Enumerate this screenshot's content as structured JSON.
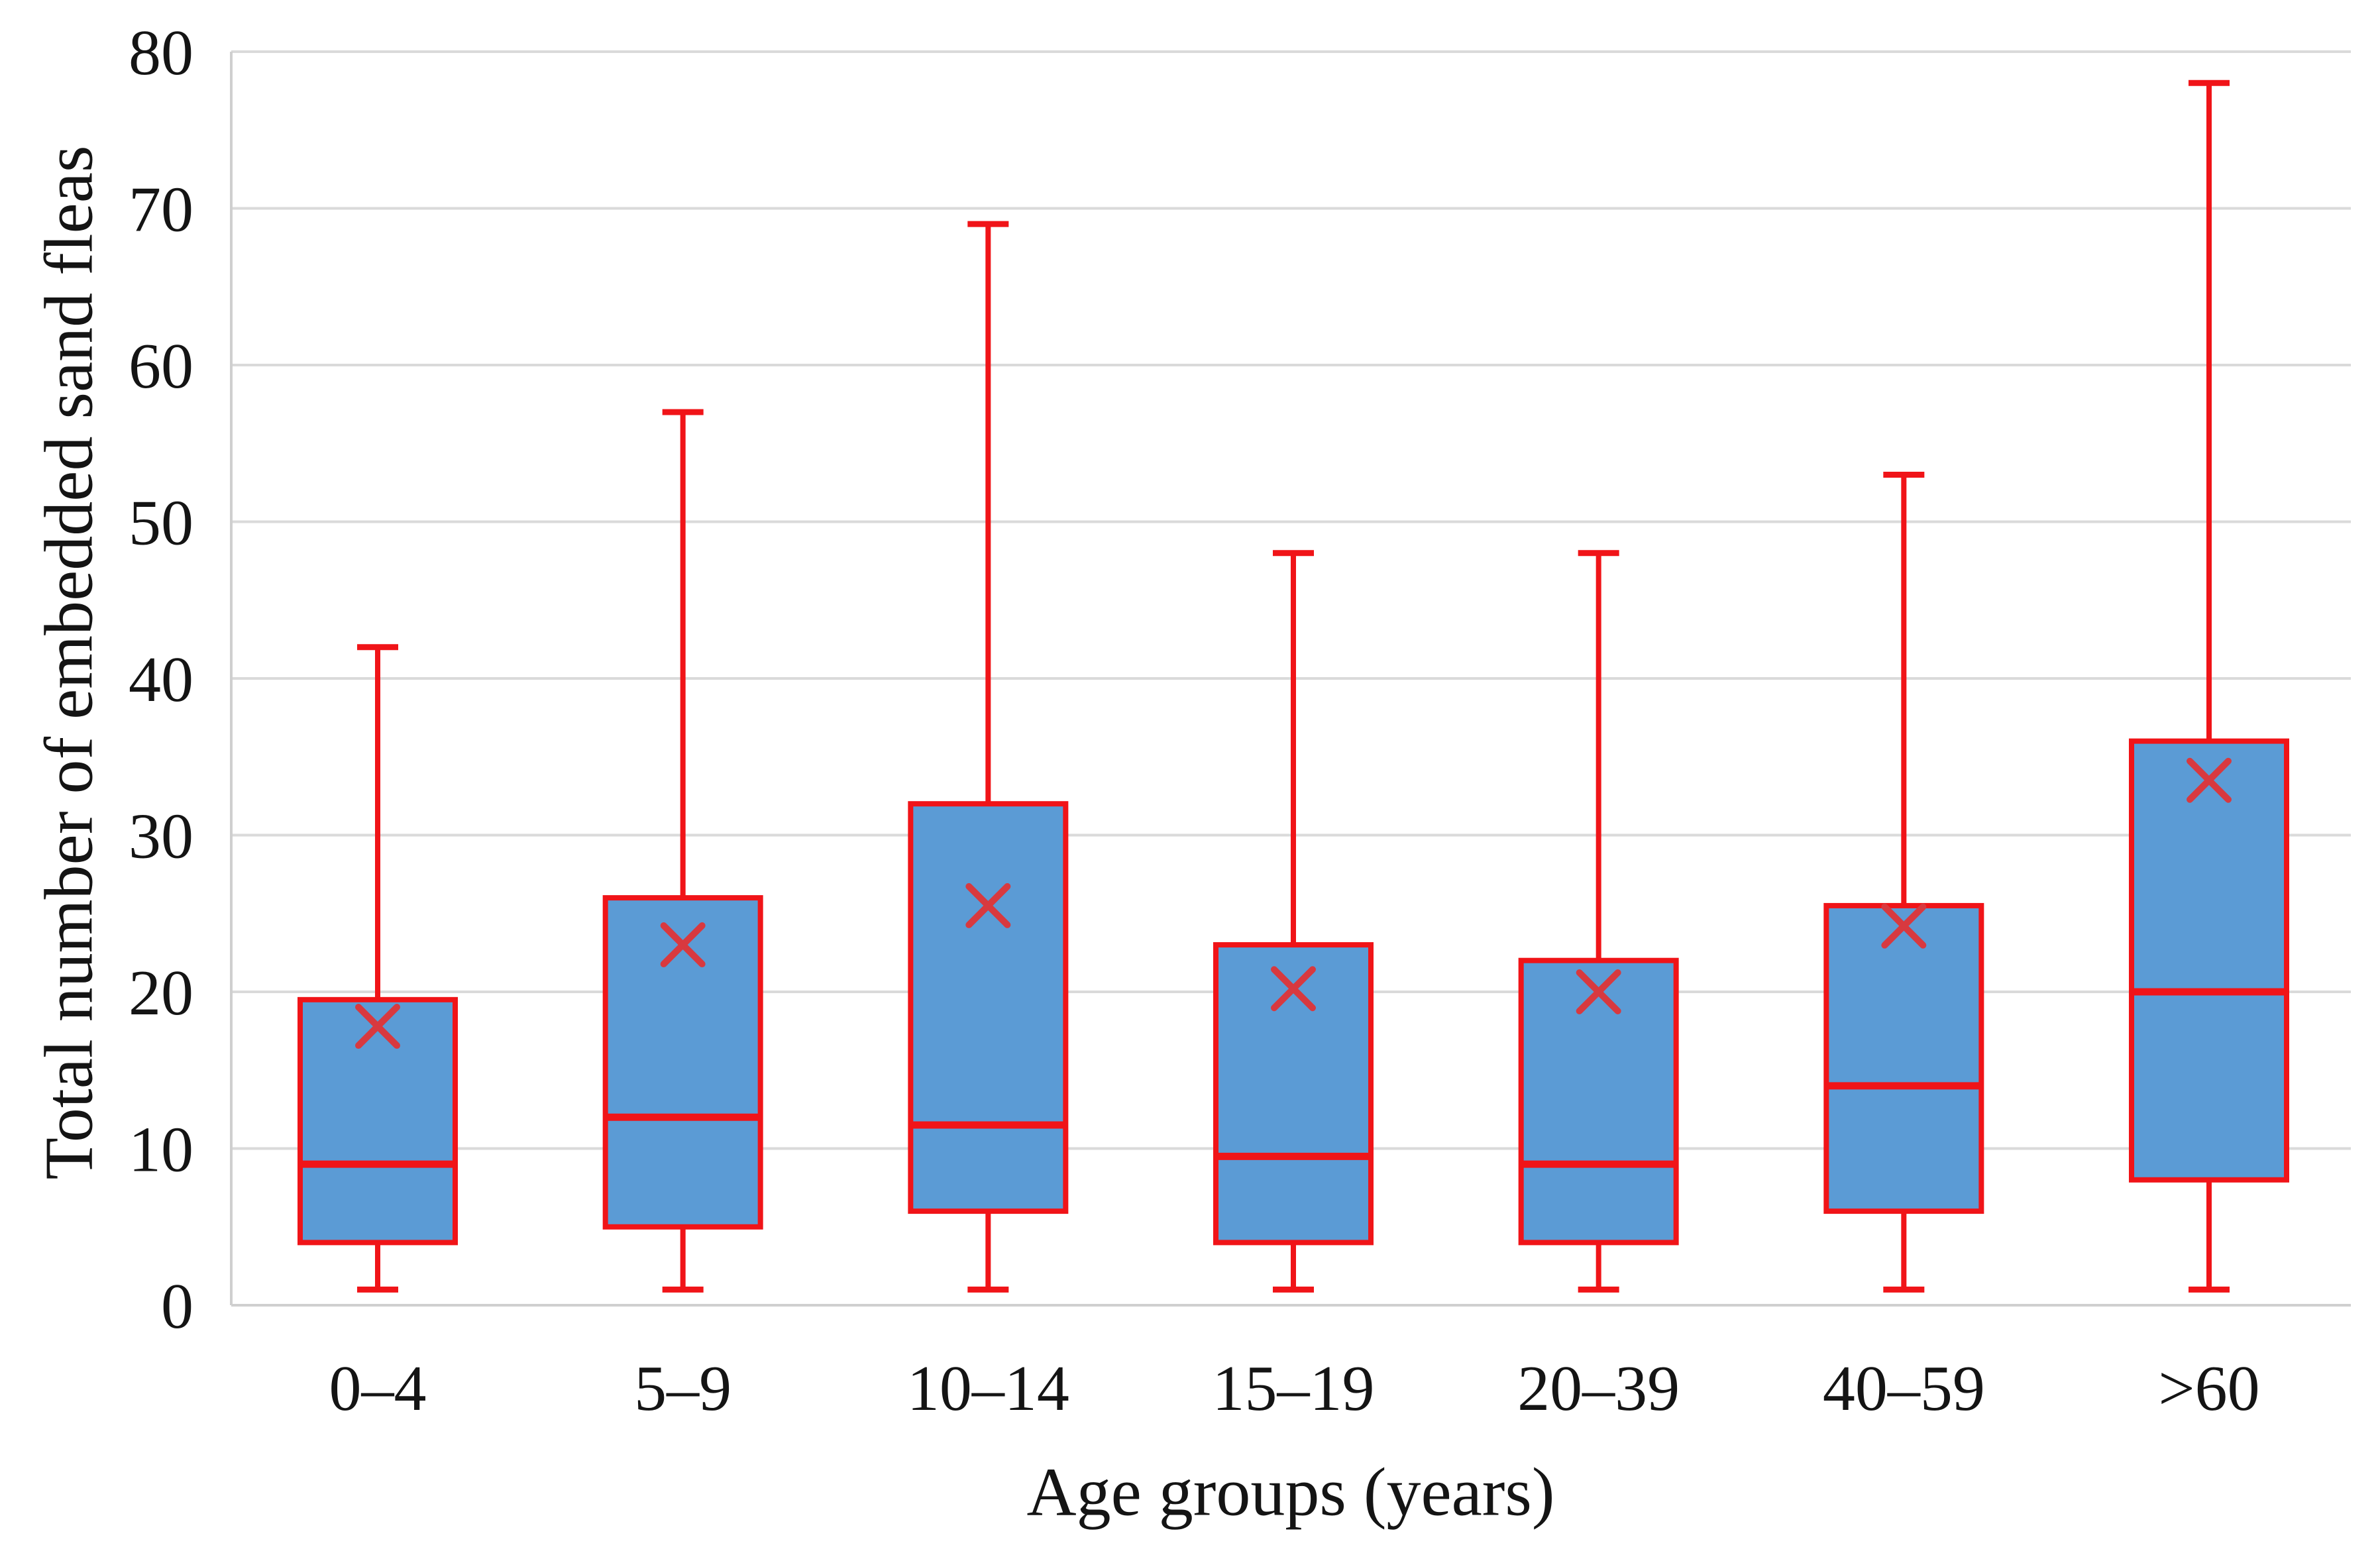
{
  "chart_data": {
    "type": "boxplot",
    "title": "",
    "xlabel": "Age groups (years)",
    "ylabel": "Total number of embedded sand fleas",
    "categories": [
      "0–4",
      "5–9",
      "10–14",
      "15–19",
      "20–39",
      "40–59",
      ">60"
    ],
    "series": [
      {
        "name": "0–4",
        "min": 1,
        "q1": 4,
        "median": 9,
        "q3": 19.5,
        "max": 42,
        "mean": 17.8
      },
      {
        "name": "5–9",
        "min": 1,
        "q1": 5,
        "median": 12,
        "q3": 26,
        "max": 57,
        "mean": 23.0
      },
      {
        "name": "10–14",
        "min": 1,
        "q1": 6,
        "median": 11.5,
        "q3": 32,
        "max": 69,
        "mean": 25.5
      },
      {
        "name": "15–19",
        "min": 1,
        "q1": 4,
        "median": 9.5,
        "q3": 23,
        "max": 48,
        "mean": 20.2
      },
      {
        "name": "20–39",
        "min": 1,
        "q1": 4,
        "median": 9,
        "q3": 22,
        "max": 48,
        "mean": 20.0
      },
      {
        "name": "40–59",
        "min": 1,
        "q1": 6,
        "median": 14,
        "q3": 25.5,
        "max": 53,
        "mean": 24.2
      },
      {
        "name": ">60",
        "min": 1,
        "q1": 8,
        "median": 20,
        "q3": 36,
        "max": 78,
        "mean": 33.5
      }
    ],
    "y_axis": {
      "min": 0,
      "max": 80,
      "tick_step": 10,
      "tick_labels": [
        "0",
        "10",
        "20",
        "30",
        "40",
        "50",
        "60",
        "70",
        "80"
      ]
    },
    "x_axis": {
      "tick_labels": [
        "0–4",
        "5–9",
        "10–14",
        "15–19",
        "20–39",
        "40–59",
        ">60"
      ]
    },
    "grid": true,
    "legend": false,
    "colors": {
      "box_fill": "#5b9bd5",
      "box_border": "#f01418",
      "whisker": "#f01418",
      "median": "#f01418",
      "mean_marker": "#d8393f",
      "gridline": "#dadada",
      "axis_line": "#cfcfcf",
      "text": "#141414"
    }
  }
}
